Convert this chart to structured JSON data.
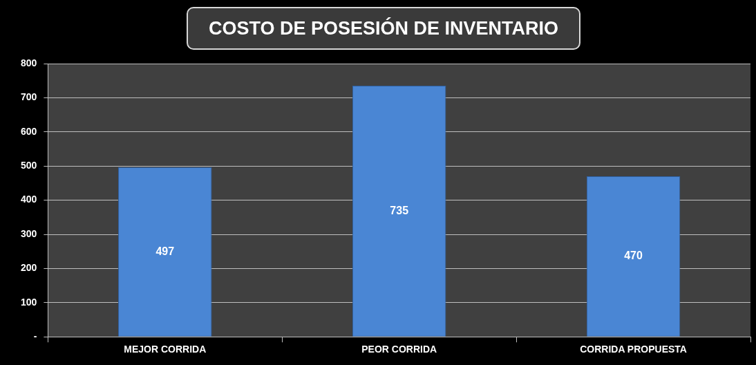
{
  "chart_data": {
    "type": "bar",
    "title": "COSTO DE POSESIÓN DE INVENTARIO",
    "categories": [
      "MEJOR CORRIDA",
      "PEOR CORRIDA",
      "CORRIDA PROPUESTA"
    ],
    "values": [
      497,
      735,
      470
    ],
    "color": "#4a86d4",
    "ylim": [
      0,
      800
    ],
    "yticks": [
      {
        "value": 0,
        "label": "-"
      },
      100,
      200,
      300,
      400,
      500,
      600,
      700,
      800
    ],
    "grid": "y",
    "legend": false,
    "data_labels": true
  }
}
